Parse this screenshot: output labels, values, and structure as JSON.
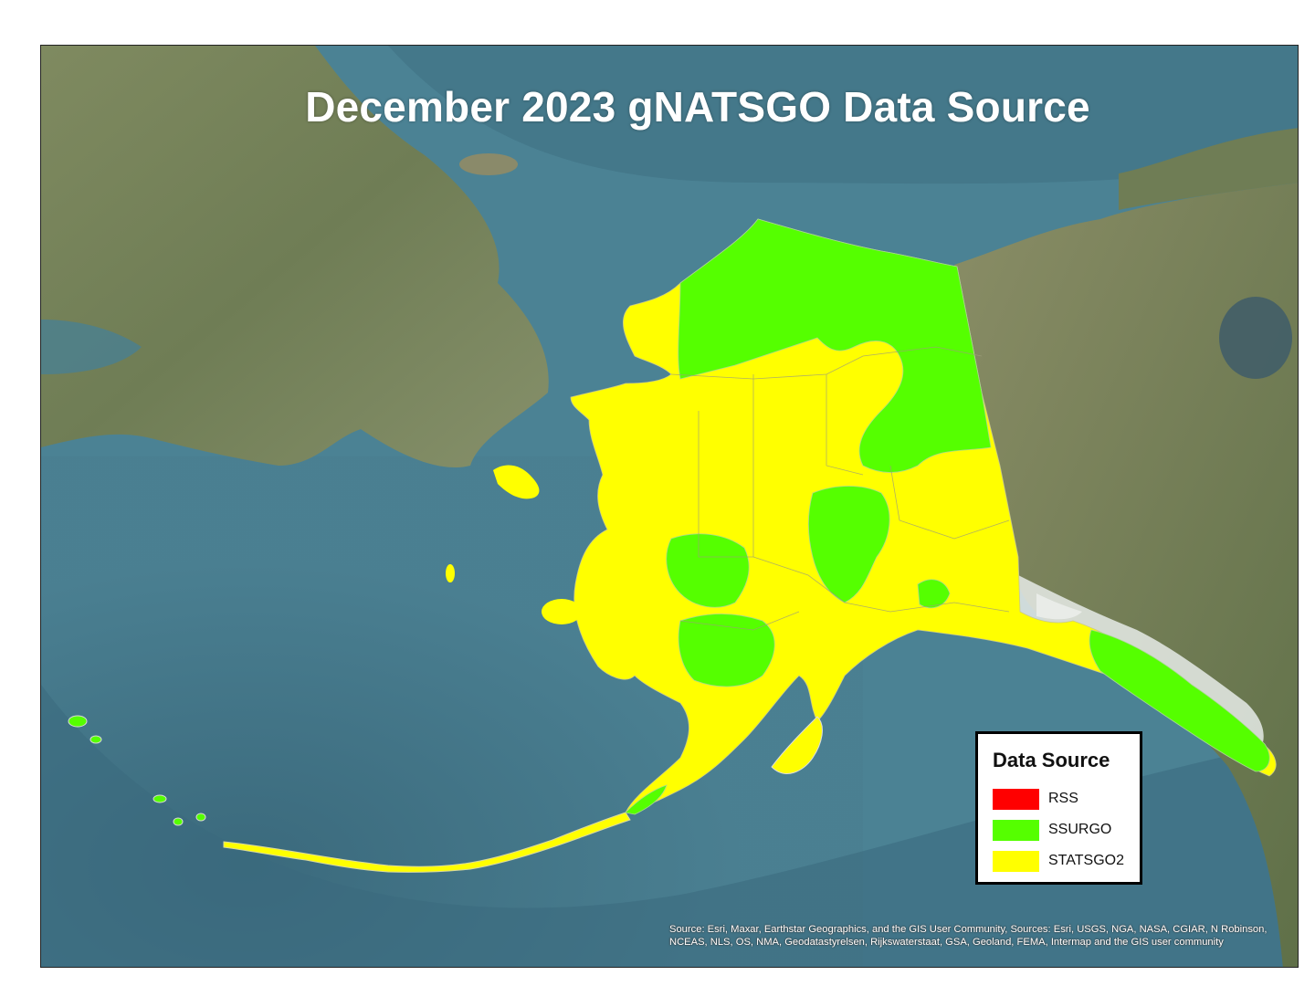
{
  "map": {
    "title": "December 2023 gNATSGO Data Source",
    "attribution": "Source: Esri, Maxar, Earthstar Geographics, and the GIS User Community, Sources: Esri, USGS, NGA, NASA, CGIAR, N Robinson, NCEAS, NLS, OS, NMA, Geodatastyrelsen, Rijkswaterstaat, GSA, Geoland, FEMA, Intermap and the GIS user community",
    "region_shown": "Alaska",
    "basemap": "satellite imagery"
  },
  "legend": {
    "title": "Data Source",
    "items": [
      {
        "label": "RSS",
        "color": "#ff0000"
      },
      {
        "label": "SSURGO",
        "color": "#55ff00"
      },
      {
        "label": "STATSGO2",
        "color": "#ffff00"
      }
    ]
  },
  "colors": {
    "ocean": "#4a7f91",
    "deep_ocean": "#3d6e80",
    "land_imagery": "#7d8a5c",
    "snow": "#e8ece9"
  }
}
